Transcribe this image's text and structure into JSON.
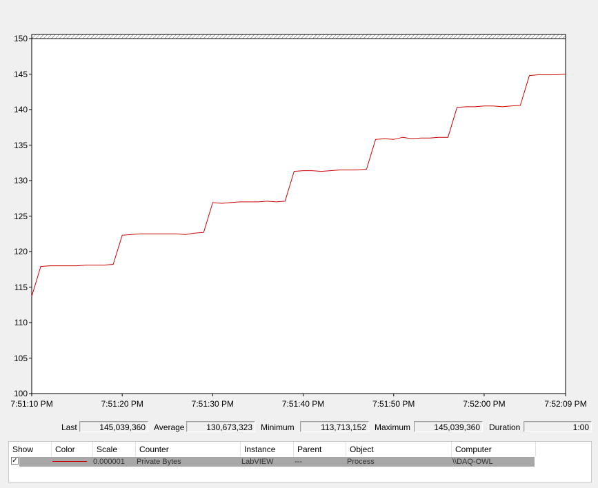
{
  "chart_data": {
    "type": "line",
    "title": "",
    "xlabel": "",
    "ylabel": "",
    "ylim": [
      100,
      150
    ],
    "ytick_labels": [
      "150",
      "145",
      "140",
      "135",
      "130",
      "125",
      "120",
      "115",
      "110",
      "105",
      "100"
    ],
    "yticks": [
      150,
      145,
      140,
      135,
      130,
      125,
      120,
      115,
      110,
      105,
      100
    ],
    "xtick_labels": [
      "7:51:10 PM",
      "7:51:20 PM",
      "7:51:30 PM",
      "7:51:40 PM",
      "7:51:50 PM",
      "7:52:00 PM",
      "7:52:09 PM"
    ],
    "xticks": [
      0,
      10,
      20,
      30,
      40,
      50,
      59
    ],
    "xlim": [
      0,
      59
    ],
    "grid": false,
    "series": [
      {
        "color": "#cc0000",
        "x": [
          0,
          1,
          2,
          3,
          4,
          5,
          6,
          7,
          8,
          9,
          10,
          11,
          12,
          13,
          14,
          15,
          16,
          17,
          18,
          19,
          20,
          21,
          22,
          23,
          24,
          25,
          26,
          27,
          28,
          29,
          30,
          31,
          32,
          33,
          34,
          35,
          36,
          37,
          38,
          39,
          40,
          41,
          42,
          43,
          44,
          45,
          46,
          47,
          48,
          49,
          50,
          51,
          52,
          53,
          54,
          55,
          56,
          57,
          58,
          59
        ],
        "y": [
          113.7,
          117.9,
          118.0,
          118.0,
          118.0,
          118.0,
          118.1,
          118.1,
          118.1,
          118.2,
          122.3,
          122.4,
          122.5,
          122.5,
          122.5,
          122.5,
          122.5,
          122.4,
          122.6,
          122.7,
          126.9,
          126.8,
          126.9,
          127.0,
          127.0,
          127.0,
          127.1,
          127.0,
          127.1,
          131.3,
          131.4,
          131.4,
          131.3,
          131.4,
          131.5,
          131.5,
          131.5,
          131.6,
          135.8,
          135.9,
          135.8,
          136.1,
          135.9,
          136.0,
          136.0,
          136.1,
          136.1,
          140.3,
          140.4,
          140.4,
          140.5,
          140.5,
          140.4,
          140.5,
          140.6,
          144.8,
          144.9,
          144.9,
          144.9,
          145.0
        ]
      }
    ]
  },
  "stats": {
    "last_label": "Last",
    "last_value": "145,039,360",
    "average_label": "Average",
    "average_value": "130,673,323",
    "minimum_label": "Minimum",
    "minimum_value": "113,713,152",
    "maximum_label": "Maximum",
    "maximum_value": "145,039,360",
    "duration_label": "Duration",
    "duration_value": "1:00"
  },
  "counter_list": {
    "columns": [
      "Show",
      "Color",
      "Scale",
      "Counter",
      "Instance",
      "Parent",
      "Object",
      "Computer"
    ],
    "rows": [
      {
        "show": "✓",
        "color": "#cc0000",
        "scale": "0.000001",
        "counter": "Private Bytes",
        "instance": "LabVIEW",
        "parent": "---",
        "object": "Process",
        "computer": "\\\\DAQ-OWL"
      }
    ]
  }
}
